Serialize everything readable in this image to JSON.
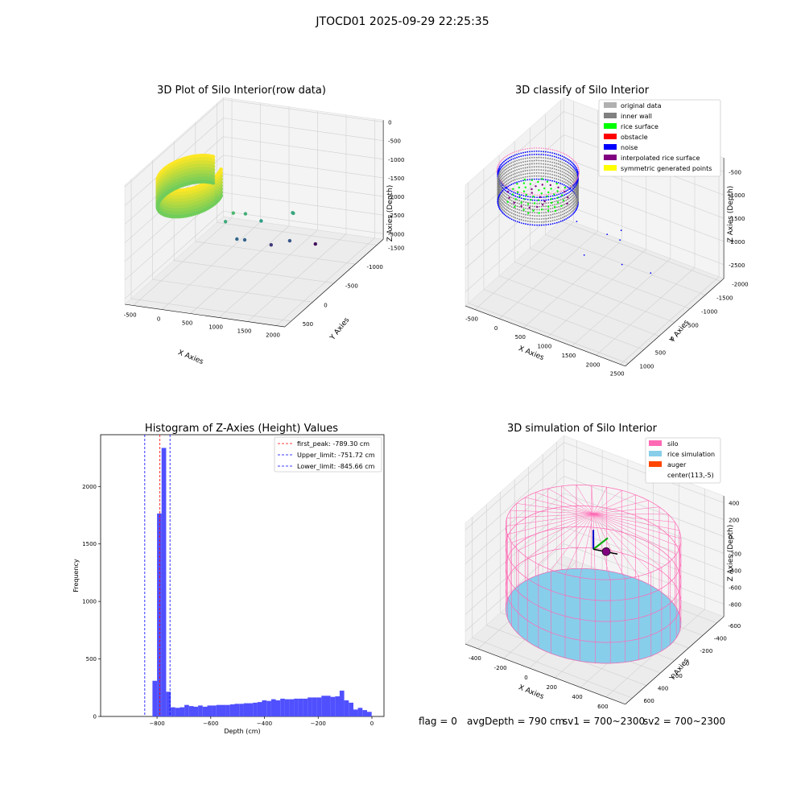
{
  "figure": {
    "suptitle": "JTOCD01 2025-09-29 22:25:35",
    "footer": {
      "flag": "flag = 0",
      "avg_depth": "avgDepth = 790 cm",
      "sv1": "sv1 = 700~2300",
      "sv2": "sv2 = 700~2300"
    }
  },
  "colors": {
    "original_data": "#b0b0b0",
    "inner_wall": "#808080",
    "rice_surface": "#00ff00",
    "obstacle": "#ff0000",
    "noise": "#0000ff",
    "interpolated_rice_surface": "#800080",
    "symmetric_generated_points": "#ffff00",
    "silo": "#ff69b4",
    "rice_simulation": "#87ceeb",
    "auger": "#ff4500",
    "hist_bar": "#5050ff",
    "first_peak_line": "#ff0000",
    "limit_line": "#0000ff"
  },
  "chart_data": [
    {
      "type": "scatter",
      "title": "3D Plot of Silo Interior(row data)",
      "xlabel": "X Axies",
      "ylabel": "Y Axies",
      "zlabel": "Z Axies (Depth)",
      "xticks": [
        "-500",
        "0",
        "500",
        "1000",
        "1500",
        "2000"
      ],
      "yticks": [
        "500",
        "0",
        "-500",
        "-1000",
        "-1500"
      ],
      "zticks": [
        "0",
        "-500",
        "-1000",
        "-1500",
        "-2000",
        "-2500",
        "-3000"
      ],
      "xlim": [
        -650,
        2150
      ],
      "ylim": [
        -1650,
        650
      ],
      "zlim": [
        -3150,
        50
      ],
      "colormap": "viridis",
      "cylinder": {
        "center": [
          0,
          0
        ],
        "radius": 450,
        "z_top": -150,
        "z_bottom": -850
      },
      "outliers": [
        {
          "x": 700,
          "y": 100,
          "z": -1200
        },
        {
          "x": 800,
          "y": 50,
          "z": -1000
        },
        {
          "x": 900,
          "y": -100,
          "z": -1150
        },
        {
          "x": 1100,
          "y": -200,
          "z": -1400
        },
        {
          "x": 1500,
          "y": -400,
          "z": -1300
        },
        {
          "x": 1550,
          "y": -350,
          "z": -1250
        },
        {
          "x": 600,
          "y": -300,
          "z": -2100
        },
        {
          "x": 700,
          "y": -350,
          "z": -2150
        },
        {
          "x": 900,
          "y": -700,
          "z": -2600
        },
        {
          "x": 1300,
          "y": -600,
          "z": -2300
        },
        {
          "x": 1300,
          "y": -1200,
          "z": -3000
        }
      ]
    },
    {
      "type": "scatter",
      "title": "3D classify of Silo Interior",
      "xlabel": "X Axies",
      "ylabel": "Y Axies",
      "zlabel": "Z Axies (Depth)",
      "xticks": [
        "-500",
        "0",
        "500",
        "1000",
        "1500",
        "2000",
        "2500"
      ],
      "yticks": [
        "1000",
        "500",
        "0",
        "-500",
        "-1000",
        "-1500",
        "-2000"
      ],
      "zticks": [
        "-500",
        "-1000",
        "-1500",
        "-2000",
        "-2500"
      ],
      "xlim": [
        -700,
        2600
      ],
      "ylim": [
        -2100,
        1100
      ],
      "zlim": [
        -2800,
        -200
      ],
      "legend": [
        {
          "label": "original data",
          "color_key": "original_data"
        },
        {
          "label": "inner wall",
          "color_key": "inner_wall"
        },
        {
          "label": "rice surface",
          "color_key": "rice_surface"
        },
        {
          "label": "obstacle",
          "color_key": "obstacle"
        },
        {
          "label": "noise",
          "color_key": "noise"
        },
        {
          "label": "interpolated rice surface",
          "color_key": "interpolated_rice_surface"
        },
        {
          "label": "symmetric generated points",
          "color_key": "symmetric_generated_points"
        }
      ],
      "legend_placement": "top-right",
      "cylinder": {
        "center": [
          100,
          0
        ],
        "radius": 700,
        "z_top": -300,
        "z_bottom": -900
      },
      "outliers": [
        {
          "x": 900,
          "y": 0,
          "z": -1000
        },
        {
          "x": 1400,
          "y": -200,
          "z": -1200
        },
        {
          "x": 1600,
          "y": -300,
          "z": -1300
        },
        {
          "x": 1500,
          "y": -500,
          "z": -1250
        },
        {
          "x": 800,
          "y": -400,
          "z": -2000
        },
        {
          "x": 1200,
          "y": -1000,
          "z": -2400
        },
        {
          "x": 1600,
          "y": -1300,
          "z": -2600
        }
      ]
    },
    {
      "type": "bar",
      "title": "Histogram of Z-Axies (Height) Values",
      "xlabel": "Depth (cm)",
      "ylabel": "Frequency",
      "xticks": [
        -800,
        -600,
        -400,
        -200,
        0
      ],
      "yticks": [
        0,
        500,
        1000,
        1500,
        2000
      ],
      "xlim": [
        -1010,
        45
      ],
      "ylim": [
        0,
        2450
      ],
      "bin_width": 17,
      "bins": [
        {
          "x": -817,
          "count": 310
        },
        {
          "x": -800,
          "count": 1765
        },
        {
          "x": -783,
          "count": 2335
        },
        {
          "x": -766,
          "count": 215
        },
        {
          "x": -749,
          "count": 80
        },
        {
          "x": -732,
          "count": 75
        },
        {
          "x": -715,
          "count": 80
        },
        {
          "x": -698,
          "count": 100
        },
        {
          "x": -681,
          "count": 90
        },
        {
          "x": -664,
          "count": 85
        },
        {
          "x": -647,
          "count": 95
        },
        {
          "x": -630,
          "count": 85
        },
        {
          "x": -613,
          "count": 95
        },
        {
          "x": -596,
          "count": 95
        },
        {
          "x": -579,
          "count": 100
        },
        {
          "x": -562,
          "count": 100
        },
        {
          "x": -545,
          "count": 100
        },
        {
          "x": -528,
          "count": 105
        },
        {
          "x": -511,
          "count": 110
        },
        {
          "x": -494,
          "count": 110
        },
        {
          "x": -477,
          "count": 115
        },
        {
          "x": -460,
          "count": 115
        },
        {
          "x": -443,
          "count": 120
        },
        {
          "x": -426,
          "count": 125
        },
        {
          "x": -409,
          "count": 140
        },
        {
          "x": -392,
          "count": 135
        },
        {
          "x": -375,
          "count": 150
        },
        {
          "x": -358,
          "count": 140
        },
        {
          "x": -341,
          "count": 155
        },
        {
          "x": -324,
          "count": 150
        },
        {
          "x": -307,
          "count": 150
        },
        {
          "x": -290,
          "count": 155
        },
        {
          "x": -273,
          "count": 155
        },
        {
          "x": -256,
          "count": 155
        },
        {
          "x": -239,
          "count": 165
        },
        {
          "x": -222,
          "count": 165
        },
        {
          "x": -205,
          "count": 165
        },
        {
          "x": -188,
          "count": 180
        },
        {
          "x": -171,
          "count": 180
        },
        {
          "x": -154,
          "count": 170
        },
        {
          "x": -137,
          "count": 175
        },
        {
          "x": -120,
          "count": 225
        },
        {
          "x": -103,
          "count": 140
        },
        {
          "x": -86,
          "count": 120
        },
        {
          "x": -69,
          "count": 60
        },
        {
          "x": -52,
          "count": 75
        },
        {
          "x": -35,
          "count": 55
        },
        {
          "x": -18,
          "count": 40
        }
      ],
      "vlines": [
        {
          "x": -789.3,
          "label": "first_peak: -789.30 cm",
          "color_key": "first_peak_line"
        },
        {
          "x": -751.72,
          "label": "Upper_limit: -751.72 cm",
          "color_key": "limit_line"
        },
        {
          "x": -845.66,
          "label": "Lower_limit: -845.66 cm",
          "color_key": "limit_line"
        }
      ],
      "legend_placement": "top-right"
    },
    {
      "type": "scatter",
      "title": "3D simulation of Silo Interior",
      "xlabel": "X Axies",
      "ylabel": "Y Axies",
      "zlabel": "Z Axies (Depth)",
      "xticks": [
        "-400",
        "-200",
        "0",
        "200",
        "400",
        "600"
      ],
      "yticks": [
        "600",
        "400",
        "200",
        "0",
        "-200",
        "-400",
        "-600"
      ],
      "zticks": [
        "400",
        "200",
        "0",
        "-200",
        "-400",
        "-600",
        "-800"
      ],
      "xlim": [
        -500,
        750
      ],
      "ylim": [
        -700,
        700
      ],
      "zlim": [
        -950,
        480
      ],
      "legend": [
        {
          "label": "silo",
          "color_key": "silo"
        },
        {
          "label": "rice simulation",
          "color_key": "rice_simulation"
        },
        {
          "label": "auger",
          "color_key": "auger"
        },
        {
          "label": "center(113,-5)",
          "color_key": ""
        }
      ],
      "legend_placement": "top-right",
      "silo": {
        "center": [
          113,
          -5
        ],
        "radius": 600,
        "z_top": 200,
        "z_bottom": -790
      },
      "rice_level": -790,
      "auger_point": {
        "x": 113,
        "y": -5,
        "z": 0
      }
    }
  ]
}
